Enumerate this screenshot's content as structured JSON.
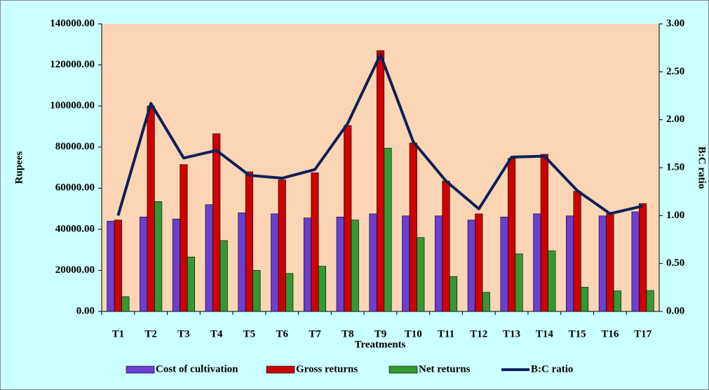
{
  "chart_data": {
    "type": "bar-line",
    "x_label": "Treatments",
    "y_label": "Rupees",
    "y2_label": "B:C ratio",
    "categories": [
      "T1",
      "T2",
      "T3",
      "T4",
      "T5",
      "T6",
      "T7",
      "T8",
      "T9",
      "T10",
      "T11",
      "T12",
      "T13",
      "T14",
      "T15",
      "T16",
      "T17"
    ],
    "series": [
      {
        "name": "Cost of cultivation",
        "color": "#6a3fd1",
        "kind": "bar",
        "values": [
          44000,
          46000,
          45000,
          52000,
          48000,
          47500,
          45500,
          46000,
          47500,
          46500,
          46500,
          44500,
          46000,
          47500,
          46500,
          46500,
          48500
        ]
      },
      {
        "name": "Gross returns",
        "color": "#cc0000",
        "kind": "bar",
        "values": [
          44500,
          100000,
          71500,
          86500,
          68000,
          64000,
          67500,
          90500,
          127000,
          82000,
          63500,
          47500,
          74500,
          76500,
          58500,
          47500,
          52500
        ]
      },
      {
        "name": "Net returns",
        "color": "#339933",
        "kind": "bar",
        "values": [
          7200,
          53500,
          26500,
          34500,
          20000,
          18500,
          22000,
          44500,
          79500,
          36000,
          17000,
          9300,
          28000,
          29500,
          11800,
          10000,
          10200
        ]
      },
      {
        "name": "B:C ratio",
        "color": "#0d1f5c",
        "kind": "line",
        "axis": "y2",
        "values": [
          1.0,
          2.17,
          1.6,
          1.68,
          1.42,
          1.39,
          1.48,
          1.96,
          2.68,
          1.77,
          1.36,
          1.07,
          1.61,
          1.62,
          1.26,
          1.02,
          1.1
        ]
      }
    ],
    "ylim": [
      0,
      140000
    ],
    "yticks": [
      {
        "value": 0,
        "label": "0.00"
      },
      {
        "value": 20000,
        "label": "20000.00"
      },
      {
        "value": 40000,
        "label": "40000.00"
      },
      {
        "value": 60000,
        "label": "60000.00"
      },
      {
        "value": 80000,
        "label": "80000.00"
      },
      {
        "value": 100000,
        "label": "100000.00"
      },
      {
        "value": 120000,
        "label": "120000.00"
      },
      {
        "value": 140000,
        "label": "140000.00"
      }
    ],
    "y2lim": [
      0,
      3
    ],
    "y2ticks": [
      {
        "value": 0,
        "label": "0.00"
      },
      {
        "value": 0.5,
        "label": "0.50"
      },
      {
        "value": 1,
        "label": "1.00"
      },
      {
        "value": 1.5,
        "label": "1.50"
      },
      {
        "value": 2,
        "label": "2.00"
      },
      {
        "value": 2.5,
        "label": "2.50"
      },
      {
        "value": 3,
        "label": "3.00"
      }
    ],
    "legend": "bottom"
  }
}
